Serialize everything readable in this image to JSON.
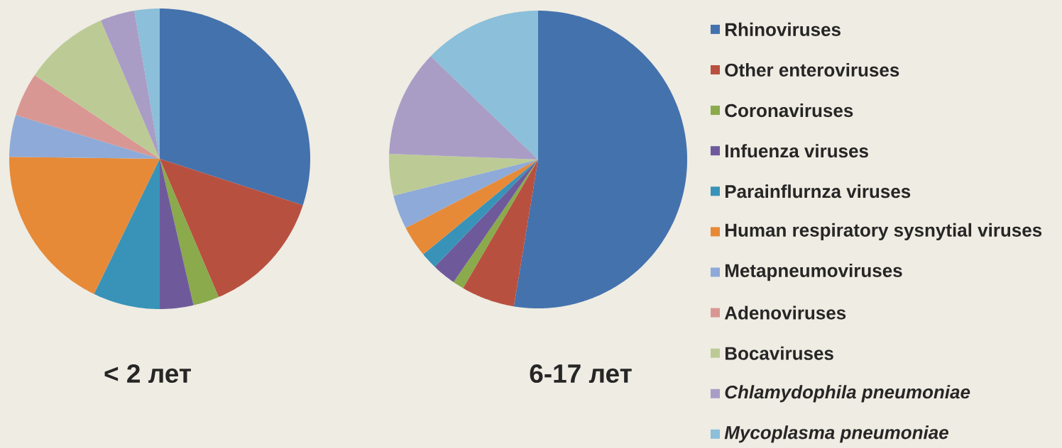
{
  "chart_data": {
    "type": "pie",
    "categories": [
      "Rhinoviruses",
      "Other enteroviruses",
      "Coronaviruses",
      "Infuenza viruses",
      "Parainflurnza viruses",
      "Human respiratory sysnytial viruses",
      "Metapneumoviruses",
      "Adenoviruses",
      "Bocaviruses",
      "Chlamydophila pneumoniae",
      "Mycoplasma pneumoniae"
    ],
    "colors": [
      "#4472ad",
      "#b85040",
      "#8aaa4c",
      "#6e5a9b",
      "#3993b8",
      "#e68a38",
      "#8eaad8",
      "#d99793",
      "#bccb96",
      "#a99dc6",
      "#8bbfda"
    ],
    "series": [
      {
        "name": "< 2 лет",
        "values": [
          30,
          13.6,
          2.8,
          3.6,
          7.2,
          18,
          4.5,
          4.7,
          9.2,
          3.7,
          2.7
        ]
      },
      {
        "name": "6-17 лет",
        "values": [
          52.6,
          5.8,
          1.2,
          2.6,
          1.8,
          3.4,
          3.7,
          0,
          4.5,
          11.6,
          12.8
        ]
      }
    ],
    "legend": "right"
  }
}
